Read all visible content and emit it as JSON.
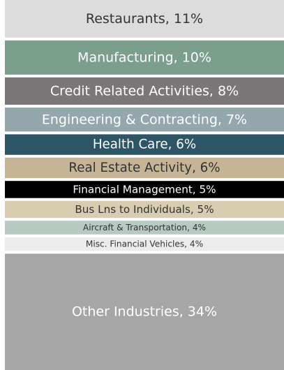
{
  "chart_data": {
    "type": "stacked-bar",
    "values": [
      11,
      10,
      8,
      7,
      6,
      6,
      5,
      5,
      4,
      4,
      34
    ],
    "value_labels": [
      "Restaurants, 11%",
      "Manufacturing, 10%",
      "Credit Related Activities, 8%",
      "Engineering & Contracting, 7%",
      "Health Care, 6%",
      "Real Estate Activity, 6%",
      "Financial Management, 5%",
      "Bus Lns to Individuals, 5%",
      "Aircraft & Transportation, 4%",
      "Misc. Financial Vehicles, 4%",
      "Other Industries, 34%"
    ],
    "colors": [
      "#dcdcdc",
      "#7c9f8d",
      "#7b7677",
      "#94a7ac",
      "#2d5566",
      "#c5b596",
      "#000000",
      "#d9cdb1",
      "#b6cac2",
      "#ececec",
      "#a6a6a6"
    ]
  }
}
